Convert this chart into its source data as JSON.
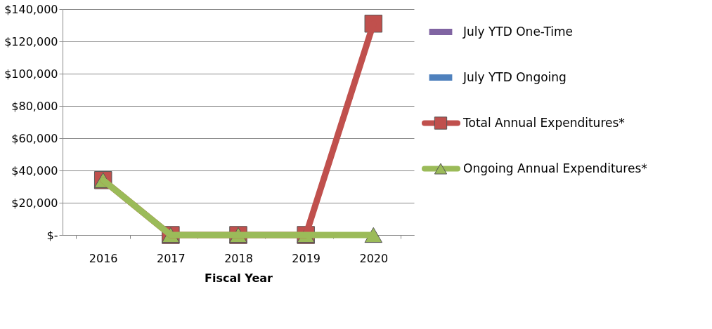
{
  "chart_data": {
    "type": "line",
    "xlabel": "Fiscal Year",
    "categories": [
      "2016",
      "2017",
      "2018",
      "2019",
      "2020"
    ],
    "series": [
      {
        "name": "July YTD One-Time",
        "type": "bar",
        "color": "#8064a2",
        "values": [
          null,
          null,
          null,
          null,
          null
        ]
      },
      {
        "name": "July YTD Ongoing",
        "type": "bar",
        "color": "#4f81bd",
        "values": [
          null,
          null,
          null,
          null,
          null
        ]
      },
      {
        "name": "Total Annual Expenditures*",
        "marker": "square",
        "color": "#c0504d",
        "values": [
          34000,
          0,
          0,
          0,
          131000
        ]
      },
      {
        "name": "Ongoing Annual Expenditures*",
        "marker": "triangle",
        "color": "#9bbb59",
        "values": [
          34000,
          0,
          0,
          0,
          0
        ]
      }
    ],
    "ylim": [
      0,
      140000
    ],
    "yticks": [
      {
        "value": 0,
        "label": "$-"
      },
      {
        "value": 20000,
        "label": "$20,000"
      },
      {
        "value": 40000,
        "label": "$40,000"
      },
      {
        "value": 60000,
        "label": "$60,000"
      },
      {
        "value": 80000,
        "label": "$80,000"
      },
      {
        "value": 100000,
        "label": "$100,000"
      },
      {
        "value": 120000,
        "label": "$120,000"
      },
      {
        "value": 140000,
        "label": "$140,000"
      }
    ],
    "grid": "y",
    "legend": "right"
  }
}
